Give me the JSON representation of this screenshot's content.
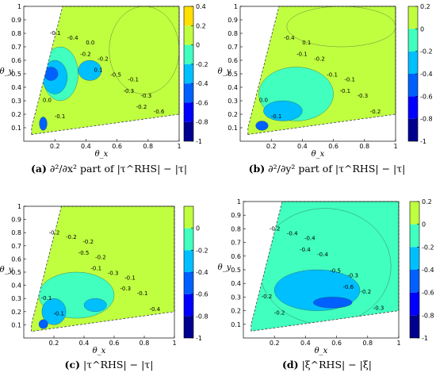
{
  "colors": {
    "-1.0": "#00008f",
    "-0.8": "#0000ff",
    "-0.6": "#0060ff",
    "-0.4": "#00bfff",
    "-0.2": "#40ffbf",
    "0.0": "#bfff40",
    "0.2": "#ffdf00",
    "0.4": "#ff2000",
    "cbar_scale": [
      "#00008f",
      "#0040ff",
      "#00bfff",
      "#40ffbf",
      "#bfff40",
      "#ffdf00",
      "#ff2000"
    ]
  },
  "chart_data": [
    {
      "id": "a",
      "type": "heatmap",
      "subtype": "filled-contour",
      "caption_label": "(a)",
      "caption_text": "∂²/∂x² part of |τ^RHS| − |τ|",
      "xlabel": "θ_x",
      "ylabel": "θ_y",
      "xlim": [
        0,
        1
      ],
      "ylim": [
        0,
        1
      ],
      "x_ticks": [
        "0.2",
        "0.4",
        "0.6",
        "0.8",
        "1"
      ],
      "y_ticks": [
        "0.1",
        "0.2",
        "0.3",
        "0.4",
        "0.5",
        "0.6",
        "0.7",
        "0.8",
        "0.9",
        "1"
      ],
      "colorbar_range": [
        -1,
        0.4
      ],
      "colorbar_ticks": [
        "0.4",
        "0.2",
        "0",
        "-0.2",
        "-0.4",
        "-0.6",
        "-0.8",
        "-1"
      ],
      "domain_polygon": [
        [
          0.05,
          0.05
        ],
        [
          0.05,
          0.1
        ],
        [
          0.25,
          1
        ],
        [
          1,
          1
        ],
        [
          1,
          0.2
        ]
      ],
      "contour_labels": [
        "0.0",
        "0.0",
        "-0.1",
        "-0.1",
        "-0.2",
        "-0.3",
        "-0.4",
        "-0.5",
        "-0.6",
        "-0.2",
        "-0.3",
        "-0.1",
        "0.1",
        "-0.2"
      ],
      "regions": [
        {
          "level": 0.0,
          "x": [
            0.55,
            1.0
          ],
          "y": [
            0.35,
            1.0
          ]
        },
        {
          "level": -0.2,
          "x": [
            0.12,
            0.35
          ],
          "y": [
            0.3,
            0.7
          ]
        },
        {
          "level": -0.4,
          "x": [
            0.12,
            0.28
          ],
          "y": [
            0.35,
            0.6
          ]
        },
        {
          "level": -0.6,
          "x": [
            0.13,
            0.22
          ],
          "y": [
            0.45,
            0.55
          ]
        },
        {
          "level": -0.4,
          "x": [
            0.35,
            0.5
          ],
          "y": [
            0.45,
            0.6
          ]
        },
        {
          "level": -0.6,
          "x": [
            0.1,
            0.15
          ],
          "y": [
            0.08,
            0.18
          ]
        }
      ]
    },
    {
      "id": "b",
      "type": "heatmap",
      "subtype": "filled-contour",
      "caption_label": "(b)",
      "caption_text": "∂²/∂y² part of |τ^RHS| − |τ|",
      "xlabel": "θ_x",
      "ylabel": "θ_y",
      "xlim": [
        0,
        1
      ],
      "ylim": [
        0,
        1
      ],
      "x_ticks": [
        "0.2",
        "0.4",
        "0.6",
        "0.8",
        "1"
      ],
      "y_ticks": [
        "0.1",
        "0.2",
        "0.3",
        "0.4",
        "0.5",
        "0.6",
        "0.7",
        "0.8",
        "0.9",
        "1"
      ],
      "colorbar_range": [
        -1,
        0.2
      ],
      "colorbar_ticks": [
        "0.2",
        "0",
        "-0.2",
        "-0.4",
        "-0.6",
        "-0.8",
        "-1"
      ],
      "domain_polygon": [
        [
          0.05,
          0.05
        ],
        [
          0.05,
          0.1
        ],
        [
          0.25,
          1
        ],
        [
          1,
          1
        ],
        [
          1,
          0.2
        ]
      ],
      "contour_labels": [
        "0.0",
        "0.1",
        "-0.1",
        "-0.1",
        "-0.2",
        "-0.3",
        "-0.4",
        "-0.1",
        "-0.2",
        "-0.1",
        "-0.1"
      ],
      "regions": [
        {
          "level": 0.0,
          "x": [
            0.3,
            1.0
          ],
          "y": [
            0.7,
            1.0
          ]
        },
        {
          "level": -0.2,
          "x": [
            0.12,
            0.6
          ],
          "y": [
            0.15,
            0.55
          ]
        },
        {
          "level": -0.4,
          "x": [
            0.15,
            0.4
          ],
          "y": [
            0.15,
            0.3
          ]
        },
        {
          "level": -0.6,
          "x": [
            0.1,
            0.18
          ],
          "y": [
            0.08,
            0.15
          ]
        }
      ]
    },
    {
      "id": "c",
      "type": "heatmap",
      "subtype": "filled-contour",
      "caption_label": "(c)",
      "caption_text": "|τ^RHS| − |τ|",
      "xlabel": "θ_x",
      "ylabel": "θ_y",
      "xlim": [
        0,
        1
      ],
      "ylim": [
        0,
        1
      ],
      "x_ticks": [
        "0.2",
        "0.4",
        "0.6",
        "0.8",
        "1"
      ],
      "y_ticks": [
        "0.1",
        "0.2",
        "0.3",
        "0.4",
        "0.5",
        "0.6",
        "0.7",
        "0.8",
        "0.9",
        "1"
      ],
      "colorbar_range": [
        -1,
        0.2
      ],
      "colorbar_ticks": [
        "0",
        "-0.2",
        "-0.4",
        "-0.6",
        "-0.8",
        "-1"
      ],
      "domain_polygon": [
        [
          0.05,
          0.05
        ],
        [
          0.05,
          0.1
        ],
        [
          0.25,
          1
        ],
        [
          1,
          1
        ],
        [
          1,
          0.2
        ]
      ],
      "contour_labels": [
        "-0.1",
        "-0.2",
        "-0.1",
        "-0.1",
        "-0.2",
        "-0.1",
        "-0.2",
        "-0.3",
        "-0.4",
        "-0.5",
        "-0.3",
        "-0.2",
        "-0.1"
      ],
      "regions": [
        {
          "level": -0.2,
          "x": [
            0.1,
            0.6
          ],
          "y": [
            0.15,
            0.5
          ]
        },
        {
          "level": -0.4,
          "x": [
            0.12,
            0.28
          ],
          "y": [
            0.1,
            0.3
          ]
        },
        {
          "level": -0.6,
          "x": [
            0.1,
            0.16
          ],
          "y": [
            0.07,
            0.14
          ]
        },
        {
          "level": -0.4,
          "x": [
            0.4,
            0.55
          ],
          "y": [
            0.2,
            0.3
          ]
        }
      ]
    },
    {
      "id": "d",
      "type": "heatmap",
      "subtype": "filled-contour",
      "caption_label": "(d)",
      "caption_text": "|ξ^RHS| − |ξ|",
      "xlabel": "θ_x",
      "ylabel": "θ_y",
      "xlim": [
        0,
        1
      ],
      "ylim": [
        0,
        1
      ],
      "x_ticks": [
        "0.2",
        "0.4",
        "0.6",
        "0.8",
        "1"
      ],
      "y_ticks": [
        "0.1",
        "0.2",
        "0.3",
        "0.4",
        "0.5",
        "0.6",
        "0.7",
        "0.8",
        "0.9",
        "1"
      ],
      "colorbar_range": [
        -1,
        0.2
      ],
      "colorbar_ticks": [
        "0.2",
        "0",
        "-0.2",
        "-0.4",
        "-0.6",
        "-0.8",
        "-1"
      ],
      "domain_polygon": [
        [
          0.05,
          0.05
        ],
        [
          0.05,
          0.1
        ],
        [
          0.25,
          1
        ],
        [
          1,
          1
        ],
        [
          1,
          0.2
        ]
      ],
      "contour_labels": [
        "-0.2",
        "-0.4",
        "-0.3",
        "-0.2",
        "-0.4",
        "-0.2",
        "-0.4",
        "-0.5",
        "-0.3",
        "-0.4",
        "-0.6",
        "-0.2"
      ],
      "regions": [
        {
          "level": -0.2,
          "x": [
            0.1,
            0.95
          ],
          "y": [
            0.1,
            0.95
          ]
        },
        {
          "level": -0.4,
          "x": [
            0.2,
            0.75
          ],
          "y": [
            0.2,
            0.5
          ]
        },
        {
          "level": -0.6,
          "x": [
            0.45,
            0.7
          ],
          "y": [
            0.22,
            0.3
          ]
        }
      ]
    }
  ]
}
